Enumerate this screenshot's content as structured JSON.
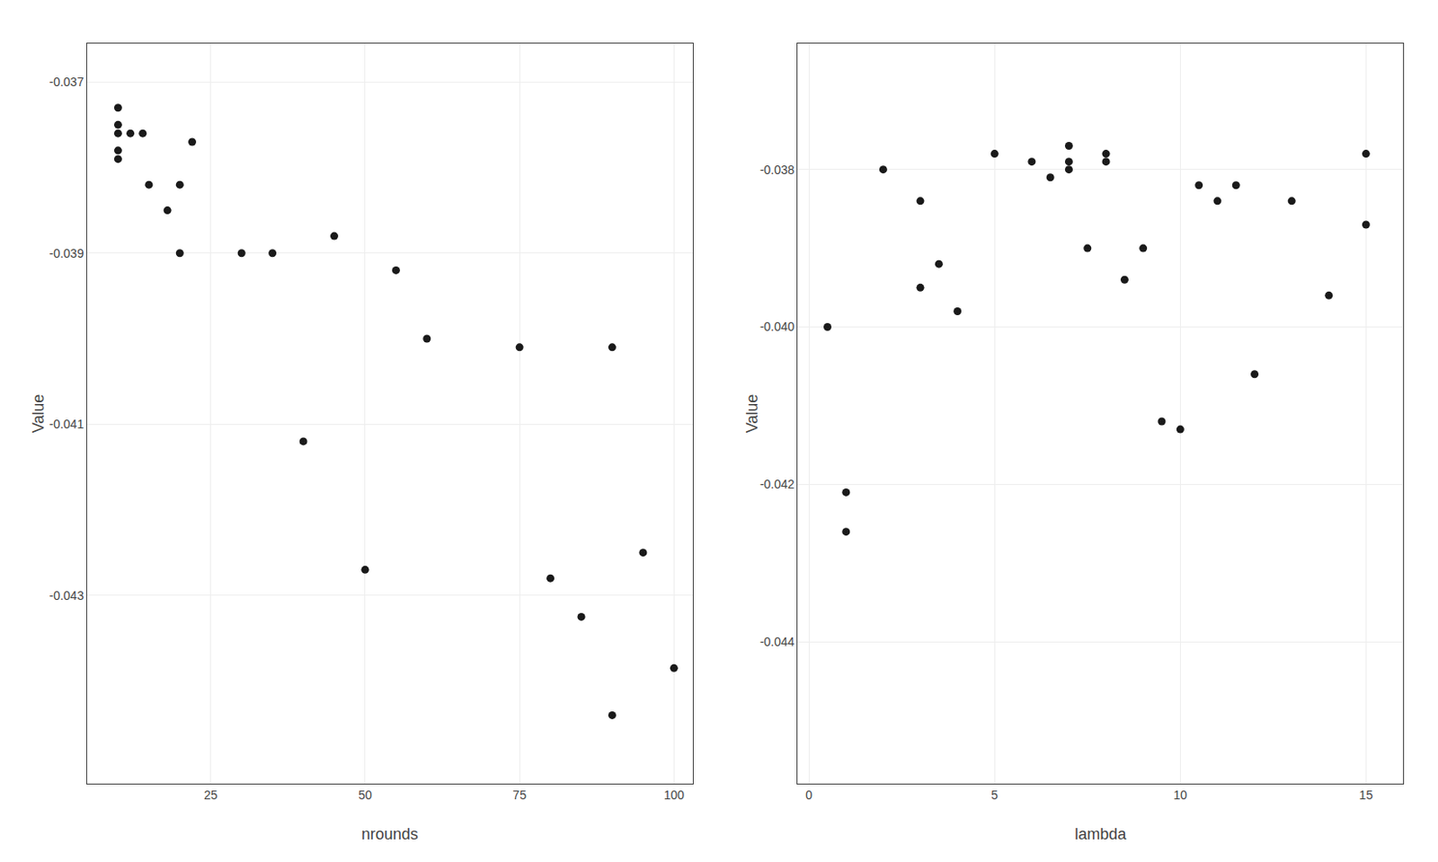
{
  "chart_data": [
    {
      "type": "scatter",
      "xlabel": "nrounds",
      "ylabel": "Value",
      "x": [
        10,
        10,
        10,
        10,
        10,
        12,
        14,
        15,
        18,
        20,
        20,
        22,
        30,
        35,
        40,
        45,
        50,
        55,
        60,
        75,
        80,
        85,
        90,
        90,
        95,
        100
      ],
      "values": [
        -0.0373,
        -0.0375,
        -0.0376,
        -0.0378,
        -0.0379,
        -0.0376,
        -0.0376,
        -0.0382,
        -0.0385,
        -0.039,
        -0.0382,
        -0.0377,
        -0.039,
        -0.039,
        -0.0412,
        -0.0388,
        -0.0427,
        -0.0392,
        -0.04,
        -0.0401,
        -0.0428,
        -0.04325,
        -0.0444,
        -0.0401,
        -0.0425,
        -0.04385
      ],
      "color": "#1a1a1a",
      "xlim": [
        5.0,
        103.0
      ],
      "ylim": [
        -0.0452,
        -0.03655
      ],
      "xticks": [
        25,
        50,
        75,
        100
      ],
      "yticks": [
        -0.037,
        -0.039,
        -0.041,
        -0.043
      ],
      "grid": true
    },
    {
      "type": "scatter",
      "xlabel": "lambda",
      "ylabel": "Value",
      "x": [
        0.5,
        1.0,
        1.0,
        2.0,
        3.0,
        3.0,
        3.5,
        4.0,
        5.0,
        6.0,
        6.5,
        7.0,
        7.0,
        7.0,
        7.5,
        8.0,
        8.0,
        8.5,
        9.0,
        9.5,
        10.0,
        10.5,
        11.0,
        11.5,
        12.0,
        13.0,
        14.0,
        15.0,
        15.0
      ],
      "values": [
        -0.04,
        -0.0421,
        -0.0426,
        -0.038,
        -0.0384,
        -0.0395,
        -0.0392,
        -0.0398,
        -0.0378,
        -0.0379,
        -0.0381,
        -0.0377,
        -0.0379,
        -0.038,
        -0.039,
        -0.0378,
        -0.0379,
        -0.0394,
        -0.039,
        -0.0412,
        -0.0413,
        -0.0382,
        -0.0384,
        -0.0382,
        -0.0406,
        -0.0384,
        -0.0396,
        -0.0378,
        -0.0387
      ],
      "color": "#1a1a1a",
      "xlim": [
        -0.3,
        16.0
      ],
      "ylim": [
        -0.0458,
        -0.0364
      ],
      "xticks": [
        0,
        5,
        10,
        15
      ],
      "yticks": [
        -0.038,
        {
          "value": -0.04,
          "label": "-0.040"
        },
        -0.042,
        -0.044
      ],
      "grid": true
    }
  ]
}
